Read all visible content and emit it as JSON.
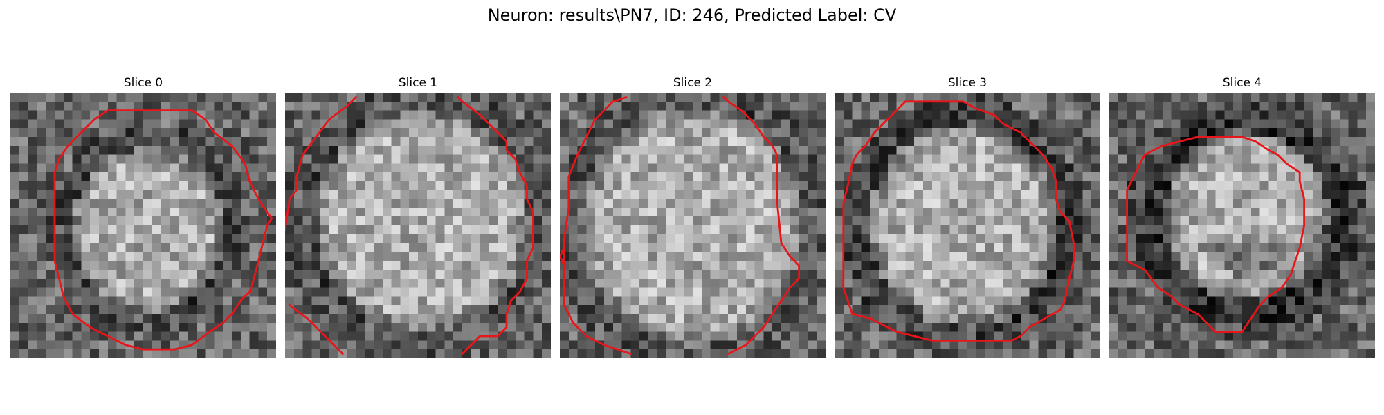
{
  "figure": {
    "title": "Neuron: results\\PN7, ID: 246, Predicted Label: CV"
  },
  "panels": [
    {
      "title": "Slice 0"
    },
    {
      "title": "Slice 1"
    },
    {
      "title": "Slice 2"
    },
    {
      "title": "Slice 3"
    },
    {
      "title": "Slice 4"
    }
  ],
  "colors": {
    "contour": "#e8161a",
    "background": "#ffffff"
  }
}
